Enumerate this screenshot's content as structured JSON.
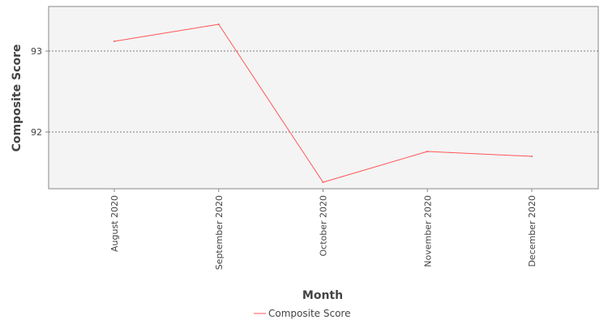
{
  "chart_data": {
    "type": "line",
    "categories": [
      "August 2020",
      "September 2020",
      "October 2020",
      "November 2020",
      "December 2020"
    ],
    "series": [
      {
        "name": "Composite Score",
        "values": [
          93.12,
          93.33,
          91.38,
          91.76,
          91.7
        ],
        "color": "#ff5555"
      }
    ],
    "xlabel": "Month",
    "ylabel": "Composite Score",
    "yticks": [
      92,
      93
    ],
    "ylim": [
      91.3,
      93.55
    ],
    "grid": true,
    "legend": "bottom-center"
  }
}
